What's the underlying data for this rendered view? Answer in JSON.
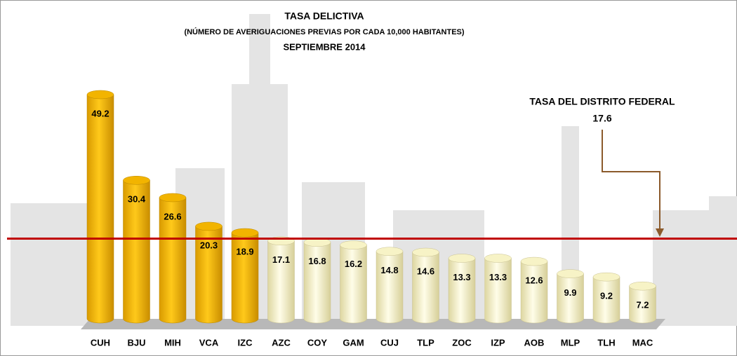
{
  "chart_data": {
    "type": "bar",
    "title": "TASA DELICTIVA",
    "subtitle": "(NÚMERO DE  AVERIGUACIONES PREVIAS POR CADA 10,000 HABITANTES)",
    "subtitle2": "SEPTIEMBRE 2014",
    "categories": [
      "CUH",
      "BJU",
      "MIH",
      "VCA",
      "IZC",
      "AZC",
      "COY",
      "GAM",
      "CUJ",
      "TLP",
      "ZOC",
      "IZP",
      "AOB",
      "MLP",
      "TLH",
      "MAC"
    ],
    "values": [
      49.2,
      30.4,
      26.6,
      20.3,
      18.9,
      17.1,
      16.8,
      16.2,
      14.8,
      14.6,
      13.3,
      13.3,
      12.6,
      9.9,
      9.2,
      7.2
    ],
    "color_above": "#f2b400",
    "color_below": "#f7f3c6",
    "reference_line": {
      "value": 17.6,
      "label": "TASA DEL DISTRITO  FEDERAL",
      "color": "#c00000"
    }
  }
}
